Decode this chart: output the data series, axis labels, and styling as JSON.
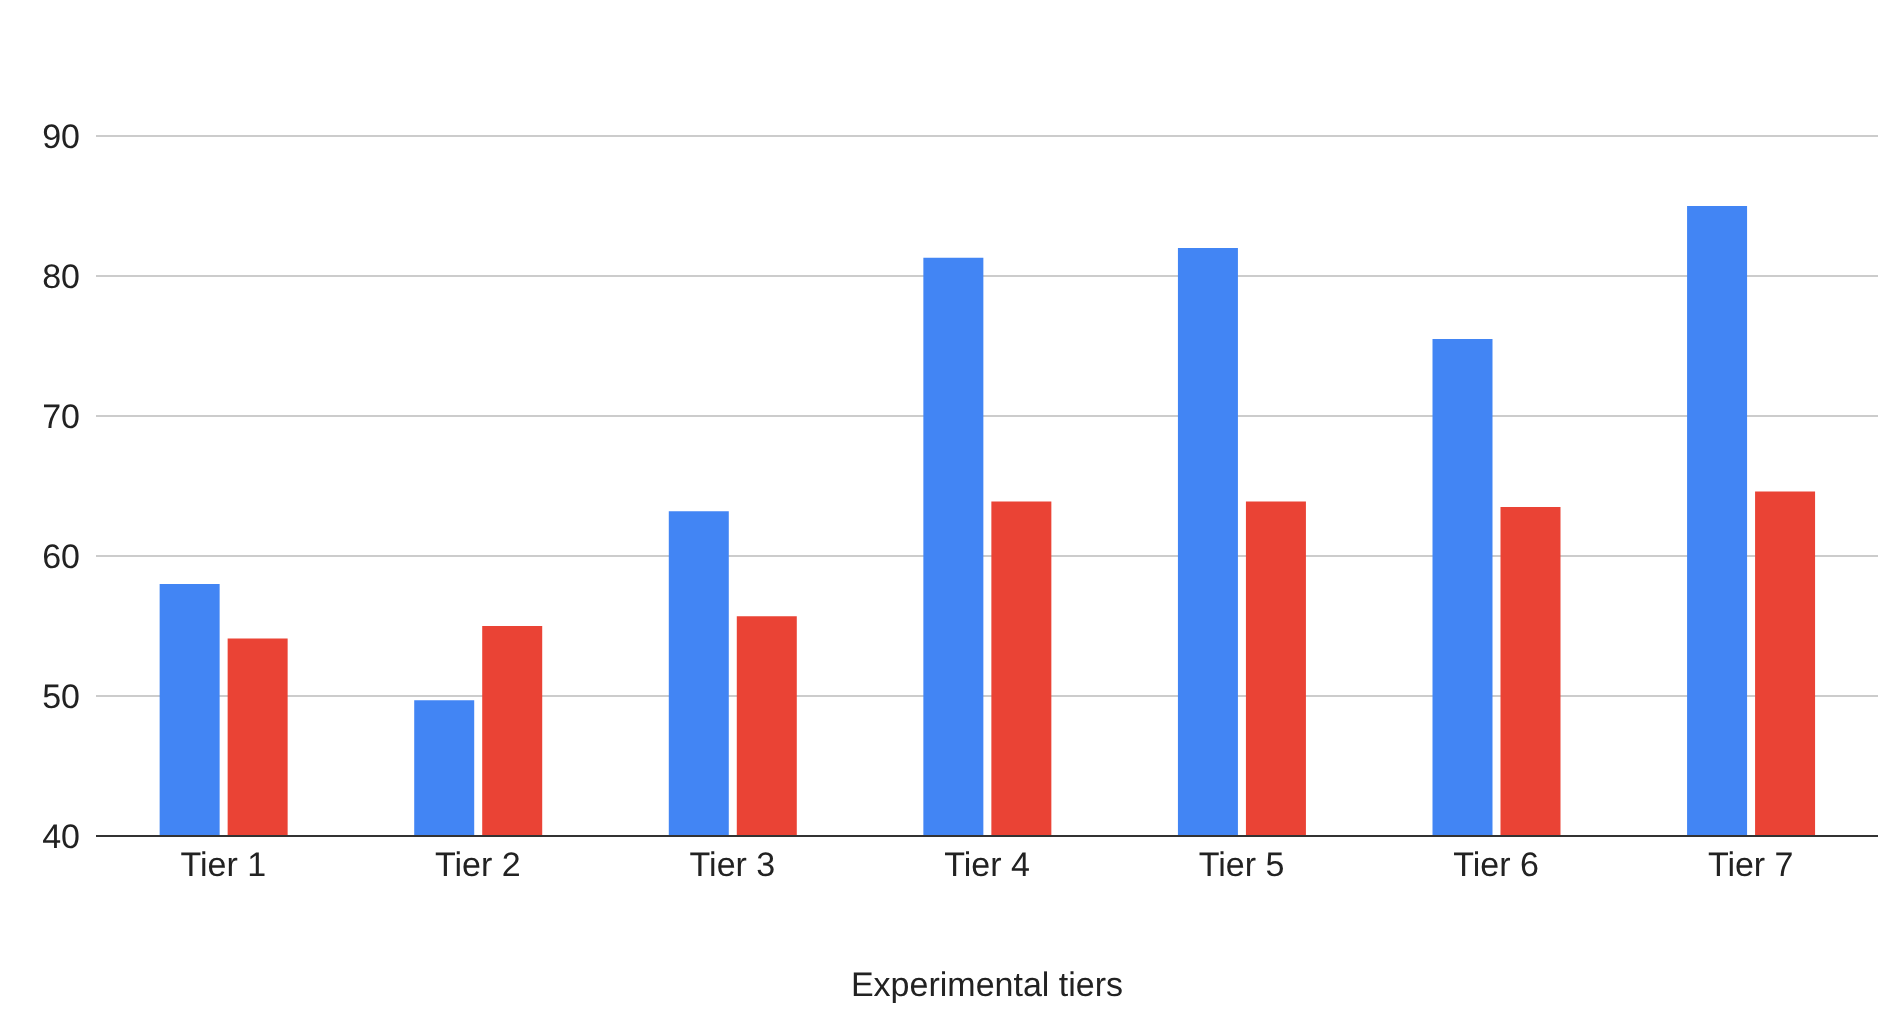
{
  "chart_data": {
    "type": "bar",
    "xlabel": "Experimental tiers",
    "categories": [
      "Tier 1",
      "Tier 2",
      "Tier 3",
      "Tier 4",
      "Tier 5",
      "Tier 6",
      "Tier 7"
    ],
    "series": [
      {
        "color": "#4285f4",
        "values": [
          58.0,
          49.7,
          63.2,
          81.3,
          82.0,
          75.5,
          85.0
        ]
      },
      {
        "color": "#ea4335",
        "values": [
          54.1,
          55.0,
          55.7,
          63.9,
          63.9,
          63.5,
          64.6
        ]
      }
    ],
    "ylim": [
      40,
      90
    ],
    "yticks": [
      40,
      50,
      60,
      70,
      80,
      90
    ],
    "grid": "y"
  }
}
